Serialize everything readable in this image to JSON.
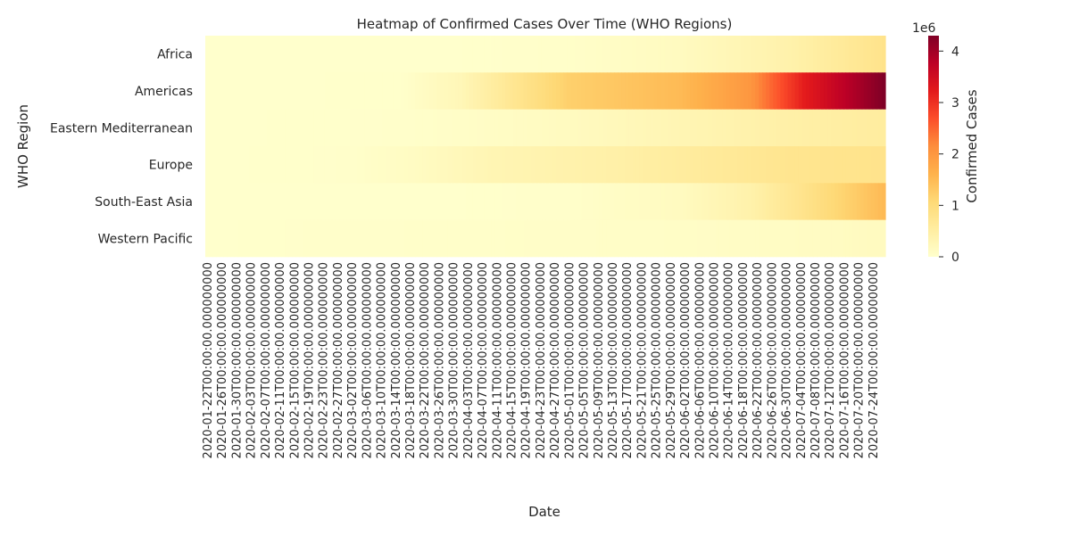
{
  "chart_data": {
    "type": "heatmap",
    "title": "Heatmap of Confirmed Cases Over Time (WHO Regions)",
    "xlabel": "Date",
    "ylabel": "WHO Region",
    "rows": [
      "Africa",
      "Americas",
      "Eastern Mediterranean",
      "Europe",
      "South-East Asia",
      "Western Pacific"
    ],
    "x_start": "2020-01-22",
    "x_end": "2020-07-27",
    "x_tick_labels": [
      "2020-01-22T00:00:00.000000000",
      "2020-01-26T00:00:00.000000000",
      "2020-01-30T00:00:00.000000000",
      "2020-02-03T00:00:00.000000000",
      "2020-02-07T00:00:00.000000000",
      "2020-02-11T00:00:00.000000000",
      "2020-02-15T00:00:00.000000000",
      "2020-02-19T00:00:00.000000000",
      "2020-02-23T00:00:00.000000000",
      "2020-02-27T00:00:00.000000000",
      "2020-03-02T00:00:00.000000000",
      "2020-03-06T00:00:00.000000000",
      "2020-03-10T00:00:00.000000000",
      "2020-03-14T00:00:00.000000000",
      "2020-03-18T00:00:00.000000000",
      "2020-03-22T00:00:00.000000000",
      "2020-03-26T00:00:00.000000000",
      "2020-03-30T00:00:00.000000000",
      "2020-04-03T00:00:00.000000000",
      "2020-04-07T00:00:00.000000000",
      "2020-04-11T00:00:00.000000000",
      "2020-04-15T00:00:00.000000000",
      "2020-04-19T00:00:00.000000000",
      "2020-04-23T00:00:00.000000000",
      "2020-04-27T00:00:00.000000000",
      "2020-05-01T00:00:00.000000000",
      "2020-05-05T00:00:00.000000000",
      "2020-05-09T00:00:00.000000000",
      "2020-05-13T00:00:00.000000000",
      "2020-05-17T00:00:00.000000000",
      "2020-05-21T00:00:00.000000000",
      "2020-05-25T00:00:00.000000000",
      "2020-05-29T00:00:00.000000000",
      "2020-06-02T00:00:00.000000000",
      "2020-06-06T00:00:00.000000000",
      "2020-06-10T00:00:00.000000000",
      "2020-06-14T00:00:00.000000000",
      "2020-06-18T00:00:00.000000000",
      "2020-06-22T00:00:00.000000000",
      "2020-06-26T00:00:00.000000000",
      "2020-06-30T00:00:00.000000000",
      "2020-07-04T00:00:00.000000000",
      "2020-07-08T00:00:00.000000000",
      "2020-07-12T00:00:00.000000000",
      "2020-07-16T00:00:00.000000000",
      "2020-07-20T00:00:00.000000000",
      "2020-07-24T00:00:00.000000000"
    ],
    "keypoints": {
      "Africa": [
        [
          "2020-01-22",
          0
        ],
        [
          "2020-04-01",
          5000
        ],
        [
          "2020-05-01",
          40000
        ],
        [
          "2020-06-01",
          150000
        ],
        [
          "2020-07-01",
          400000
        ],
        [
          "2020-07-27",
          800000
        ]
      ],
      "Americas": [
        [
          "2020-01-22",
          0
        ],
        [
          "2020-03-15",
          10000
        ],
        [
          "2020-04-01",
          250000
        ],
        [
          "2020-05-01",
          1200000
        ],
        [
          "2020-06-01",
          1500000
        ],
        [
          "2020-06-20",
          2000000
        ],
        [
          "2020-07-05",
          3200000
        ],
        [
          "2020-07-27",
          4300000
        ]
      ],
      "Eastern Mediterranean": [
        [
          "2020-01-22",
          0
        ],
        [
          "2020-03-15",
          20000
        ],
        [
          "2020-04-01",
          60000
        ],
        [
          "2020-05-01",
          150000
        ],
        [
          "2020-06-01",
          300000
        ],
        [
          "2020-07-01",
          450000
        ],
        [
          "2020-07-27",
          550000
        ]
      ],
      "Europe": [
        [
          "2020-01-22",
          0
        ],
        [
          "2020-03-01",
          20000
        ],
        [
          "2020-03-20",
          120000
        ],
        [
          "2020-04-10",
          300000
        ],
        [
          "2020-05-15",
          450000
        ],
        [
          "2020-06-15",
          650000
        ],
        [
          "2020-07-01",
          750000
        ],
        [
          "2020-07-27",
          800000
        ]
      ],
      "South-East Asia": [
        [
          "2020-01-22",
          0
        ],
        [
          "2020-04-01",
          5000
        ],
        [
          "2020-05-01",
          30000
        ],
        [
          "2020-06-01",
          150000
        ],
        [
          "2020-06-20",
          400000
        ],
        [
          "2020-07-05",
          800000
        ],
        [
          "2020-07-27",
          1500000
        ]
      ],
      "Western Pacific": [
        [
          "2020-01-22",
          0
        ],
        [
          "2020-02-20",
          20000
        ],
        [
          "2020-03-15",
          30000
        ],
        [
          "2020-05-01",
          50000
        ],
        [
          "2020-06-01",
          70000
        ],
        [
          "2020-07-01",
          100000
        ],
        [
          "2020-07-27",
          150000
        ]
      ]
    },
    "colorbar": {
      "label": "Confirmed Cases",
      "multiplier": "1e6",
      "ticks": [
        0,
        1,
        2,
        3,
        4
      ],
      "min": 0,
      "max": 4300000,
      "colormap": "YlOrRd",
      "stops": [
        "#ffffcc",
        "#ffeda0",
        "#fed976",
        "#feb24c",
        "#fd8d3c",
        "#fc4e2a",
        "#e31a1c",
        "#bd0026",
        "#800026"
      ]
    }
  }
}
